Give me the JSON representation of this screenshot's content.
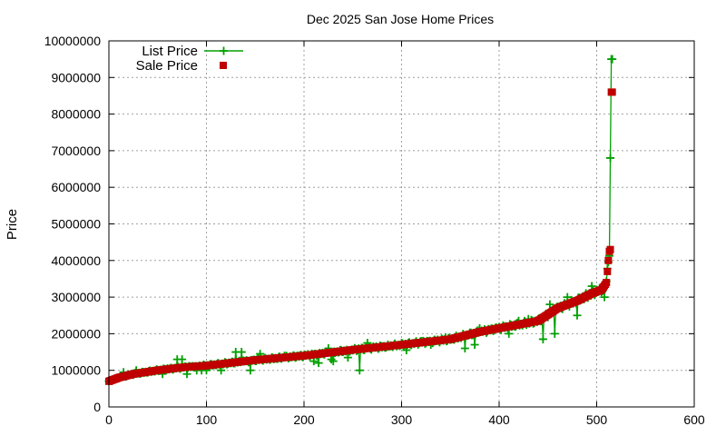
{
  "chart_data": {
    "type": "line",
    "title": "Dec 2025 San Jose Home Prices",
    "xlabel": "",
    "ylabel": "Price",
    "xlim": [
      0,
      600
    ],
    "ylim": [
      0,
      10000000
    ],
    "x_ticks": [
      "0",
      "100",
      "200",
      "300",
      "400",
      "500",
      "600"
    ],
    "y_ticks": [
      "0",
      "1000000",
      "2000000",
      "3000000",
      "4000000",
      "5000000",
      "6000000",
      "7000000",
      "8000000",
      "9000000",
      "10000000"
    ],
    "grid": true,
    "legend_position": "top-left",
    "count": 517,
    "sale_profile": [
      [
        0,
        700000
      ],
      [
        10,
        800000
      ],
      [
        25,
        900000
      ],
      [
        50,
        1000000
      ],
      [
        75,
        1080000
      ],
      [
        100,
        1130000
      ],
      [
        150,
        1280000
      ],
      [
        200,
        1400000
      ],
      [
        250,
        1560000
      ],
      [
        300,
        1700000
      ],
      [
        350,
        1850000
      ],
      [
        380,
        2050000
      ],
      [
        410,
        2200000
      ],
      [
        440,
        2350000
      ],
      [
        460,
        2700000
      ],
      [
        480,
        2900000
      ],
      [
        495,
        3100000
      ],
      [
        505,
        3200000
      ],
      [
        509,
        3350000
      ],
      [
        510,
        3400000
      ],
      [
        511,
        3700000
      ],
      [
        512,
        4000000
      ],
      [
        513,
        4250000
      ],
      [
        514,
        4300000
      ],
      [
        515,
        8600000
      ],
      [
        516,
        8600000
      ]
    ],
    "list_outliers": [
      [
        15,
        950000
      ],
      [
        28,
        1000000
      ],
      [
        55,
        900000
      ],
      [
        60,
        1050000
      ],
      [
        70,
        1300000
      ],
      [
        75,
        1300000
      ],
      [
        80,
        900000
      ],
      [
        90,
        1000000
      ],
      [
        95,
        1000000
      ],
      [
        100,
        1000000
      ],
      [
        115,
        1000000
      ],
      [
        130,
        1500000
      ],
      [
        136,
        1500000
      ],
      [
        145,
        1000000
      ],
      [
        155,
        1450000
      ],
      [
        180,
        1400000
      ],
      [
        210,
        1250000
      ],
      [
        215,
        1200000
      ],
      [
        225,
        1600000
      ],
      [
        228,
        1300000
      ],
      [
        230,
        1250000
      ],
      [
        245,
        1350000
      ],
      [
        257,
        1000000
      ],
      [
        265,
        1750000
      ],
      [
        285,
        1650000
      ],
      [
        305,
        1550000
      ],
      [
        320,
        1800000
      ],
      [
        330,
        1700000
      ],
      [
        345,
        1900000
      ],
      [
        365,
        1600000
      ],
      [
        375,
        1700000
      ],
      [
        380,
        2150000
      ],
      [
        395,
        2100000
      ],
      [
        405,
        2200000
      ],
      [
        410,
        2000000
      ],
      [
        420,
        2350000
      ],
      [
        430,
        2400000
      ],
      [
        445,
        1850000
      ],
      [
        452,
        2800000
      ],
      [
        457,
        2000000
      ],
      [
        470,
        3000000
      ],
      [
        480,
        2500000
      ],
      [
        495,
        3300000
      ],
      [
        500,
        3200000
      ],
      [
        508,
        3000000
      ],
      [
        514,
        6800000
      ],
      [
        515,
        9500000
      ],
      [
        516,
        9500000
      ]
    ],
    "series": [
      {
        "name": "List Price",
        "color": "#00a000",
        "marker": "plus"
      },
      {
        "name": "Sale Price",
        "color": "#c00000",
        "marker": "square"
      }
    ]
  }
}
